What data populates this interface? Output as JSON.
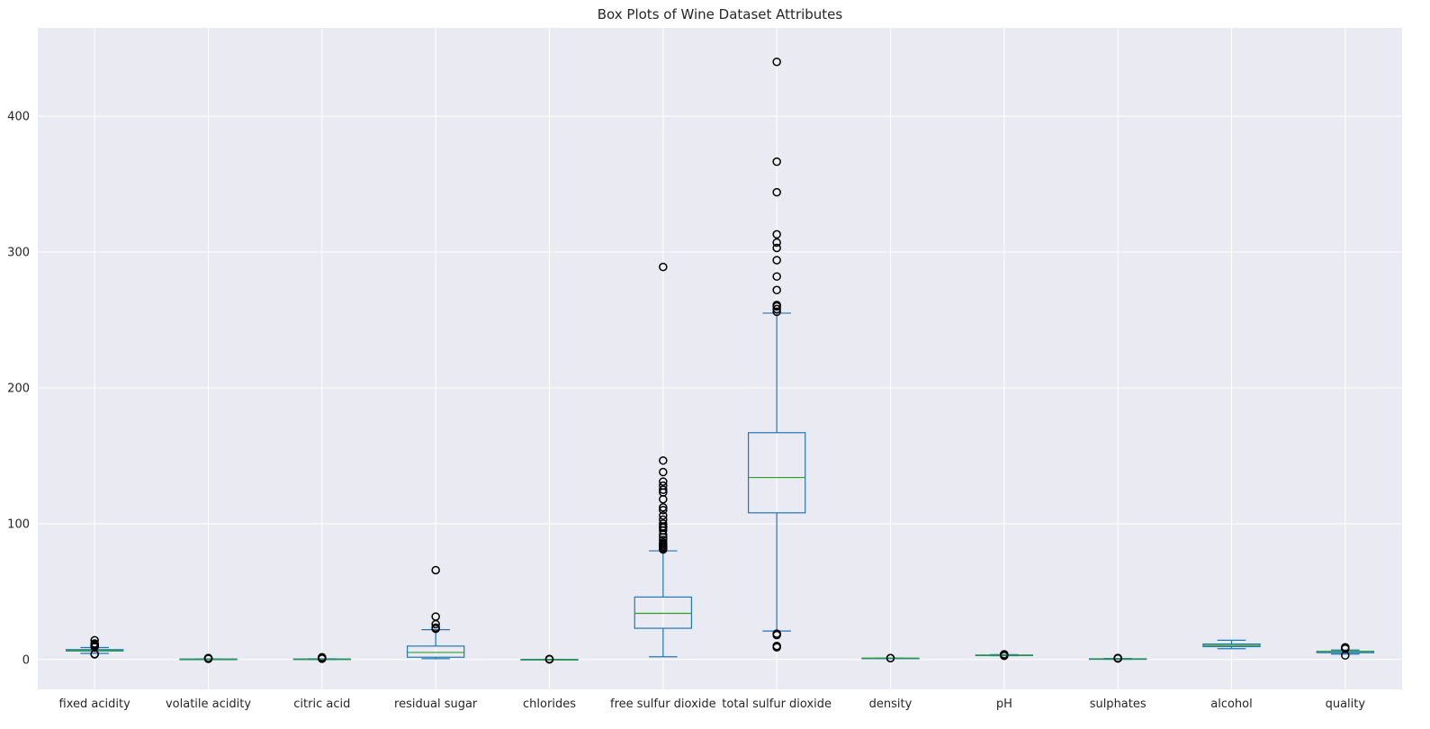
{
  "chart_data": {
    "type": "box",
    "title": "Box Plots of Wine Dataset Attributes",
    "xlabel": "",
    "ylabel": "",
    "ylim": [
      -22,
      465
    ],
    "yticks": [
      0,
      100,
      200,
      300,
      400
    ],
    "grid": true,
    "categories": [
      "fixed acidity",
      "volatile acidity",
      "citric acid",
      "residual sugar",
      "chlorides",
      "free sulfur dioxide",
      "total sulfur dioxide",
      "density",
      "pH",
      "sulphates",
      "alcohol",
      "quality"
    ],
    "boxes": [
      {
        "name": "fixed acidity",
        "whislo": 4.5,
        "q1": 6.3,
        "med": 6.8,
        "q3": 7.3,
        "whishi": 8.8,
        "fliers": [
          3.8,
          4.0,
          9.2,
          9.8,
          10.3,
          11.0,
          11.8,
          14.2
        ]
      },
      {
        "name": "volatile acidity",
        "whislo": 0.08,
        "q1": 0.21,
        "med": 0.26,
        "q3": 0.32,
        "whishi": 0.49,
        "fliers": [
          0.55,
          0.65,
          0.8,
          0.95,
          1.1
        ]
      },
      {
        "name": "citric acid",
        "whislo": 0.0,
        "q1": 0.27,
        "med": 0.32,
        "q3": 0.39,
        "whishi": 0.57,
        "fliers": [
          0.6,
          0.8,
          1.0,
          1.23,
          1.66
        ]
      },
      {
        "name": "residual sugar",
        "whislo": 0.6,
        "q1": 1.7,
        "med": 5.2,
        "q3": 9.9,
        "whishi": 22.0,
        "fliers": [
          22.6,
          23.5,
          26.0,
          31.6,
          65.8
        ]
      },
      {
        "name": "chlorides",
        "whislo": 0.01,
        "q1": 0.036,
        "med": 0.043,
        "q3": 0.05,
        "whishi": 0.07,
        "fliers": [
          0.1,
          0.2,
          0.3,
          0.35
        ]
      },
      {
        "name": "free sulfur dioxide",
        "whislo": 2,
        "q1": 23,
        "med": 34,
        "q3": 46,
        "whishi": 80,
        "fliers": [
          81,
          82,
          83,
          84,
          85,
          86,
          88,
          90,
          92,
          95,
          97,
          98,
          100,
          103,
          106,
          110,
          112,
          118,
          123,
          125,
          128,
          131,
          138,
          146.5,
          289
        ]
      },
      {
        "name": "total sulfur dioxide",
        "whislo": 21,
        "q1": 108,
        "med": 134,
        "q3": 167,
        "whishi": 255,
        "fliers": [
          9,
          10,
          18,
          19,
          256,
          258,
          260,
          261,
          272,
          282,
          294,
          303,
          307,
          313,
          344,
          366.5,
          440
        ]
      },
      {
        "name": "density",
        "whislo": 0.987,
        "q1": 0.99,
        "med": 0.994,
        "q3": 0.996,
        "whishi": 1.002,
        "fliers": [
          1.01,
          1.039
        ]
      },
      {
        "name": "pH",
        "whislo": 2.79,
        "q1": 3.09,
        "med": 3.18,
        "q3": 3.28,
        "whishi": 3.57,
        "fliers": [
          2.72,
          3.6,
          3.7,
          3.82
        ]
      },
      {
        "name": "sulphates",
        "whislo": 0.22,
        "q1": 0.41,
        "med": 0.47,
        "q3": 0.55,
        "whishi": 0.76,
        "fliers": [
          0.8,
          0.9,
          1.0,
          1.08
        ]
      },
      {
        "name": "alcohol",
        "whislo": 8.0,
        "q1": 9.5,
        "med": 10.4,
        "q3": 11.4,
        "whishi": 14.2,
        "fliers": []
      },
      {
        "name": "quality",
        "whislo": 4,
        "q1": 5,
        "med": 6,
        "q3": 6,
        "whishi": 7,
        "fliers": [
          3,
          8,
          9
        ]
      }
    ]
  }
}
